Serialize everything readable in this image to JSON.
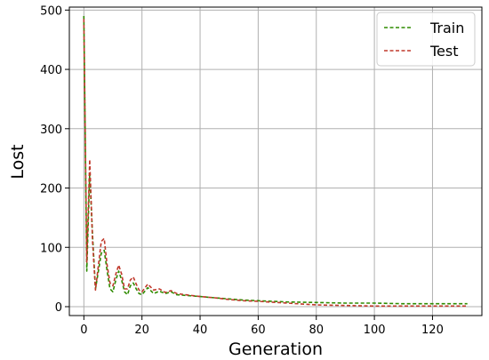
{
  "chart_data": {
    "type": "line",
    "title": "",
    "xlabel": "Generation",
    "ylabel": "Lost",
    "xlim": [
      -5,
      137
    ],
    "ylim": [
      -15,
      505
    ],
    "xticks": [
      0,
      20,
      40,
      60,
      80,
      100,
      120
    ],
    "yticks": [
      0,
      100,
      200,
      300,
      400,
      500
    ],
    "grid": true,
    "legend_position": "upper right",
    "series": [
      {
        "name": "Train",
        "color": "#2e8b00",
        "style": "dashed",
        "x": [
          0,
          1,
          2,
          3,
          4,
          5,
          6,
          7,
          8,
          9,
          10,
          11,
          12,
          13,
          14,
          15,
          16,
          17,
          18,
          19,
          20,
          22,
          24,
          26,
          28,
          30,
          32,
          35,
          40,
          45,
          50,
          55,
          60,
          70,
          80,
          90,
          100,
          110,
          120,
          132
        ],
        "y": [
          490,
          60,
          225,
          120,
          30,
          60,
          90,
          95,
          60,
          30,
          25,
          45,
          60,
          45,
          25,
          20,
          35,
          40,
          30,
          22,
          20,
          32,
          22,
          26,
          22,
          25,
          20,
          19,
          17,
          15,
          13,
          11,
          10,
          8,
          7,
          6,
          6,
          5,
          5,
          5
        ]
      },
      {
        "name": "Test",
        "color": "#c0392b",
        "style": "dashed",
        "x": [
          0,
          1,
          2,
          3,
          4,
          5,
          6,
          7,
          8,
          9,
          10,
          11,
          12,
          13,
          14,
          15,
          16,
          17,
          18,
          19,
          20,
          22,
          24,
          26,
          28,
          30,
          32,
          35,
          40,
          45,
          50,
          55,
          60,
          70,
          80,
          90,
          100,
          110,
          120,
          132
        ],
        "y": [
          485,
          75,
          248,
          110,
          28,
          70,
          110,
          115,
          70,
          40,
          35,
          55,
          70,
          55,
          30,
          30,
          45,
          50,
          38,
          28,
          25,
          38,
          28,
          30,
          24,
          27,
          22,
          20,
          17,
          15,
          12,
          10,
          9,
          6,
          3,
          2,
          1,
          1,
          1,
          1
        ]
      }
    ]
  }
}
